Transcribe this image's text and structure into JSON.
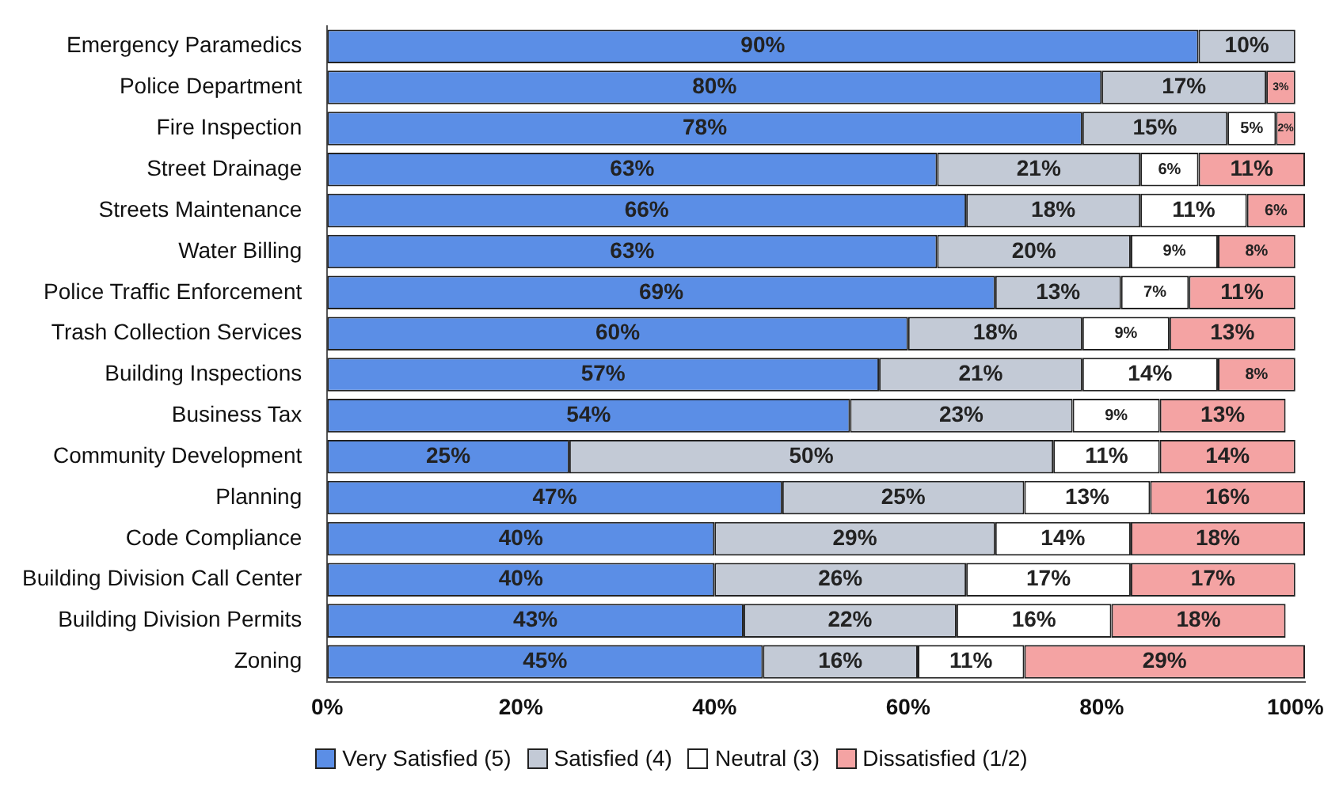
{
  "chart_data": {
    "type": "bar",
    "orientation": "horizontal",
    "stacked": true,
    "legend": "bottom",
    "grid": false,
    "categories": [
      "Emergency Paramedics",
      "Police Department",
      "Fire Inspection",
      "Street Drainage",
      "Streets Maintenance",
      "Water Billing",
      "Police Traffic Enforcement",
      "Trash Collection Services",
      "Building Inspections",
      "Business Tax",
      "Community Development",
      "Planning",
      "Code Compliance",
      "Building Division Call Center",
      "Building Division Permits",
      "Zoning"
    ],
    "xlim": [
      0,
      101
    ],
    "xticks": [
      {
        "value": 0,
        "label": "0%"
      },
      {
        "value": 20,
        "label": "20%"
      },
      {
        "value": 40,
        "label": "40%"
      },
      {
        "value": 60,
        "label": "60%"
      },
      {
        "value": 80,
        "label": "80%"
      },
      {
        "value": 100,
        "label": "100%"
      }
    ],
    "series": [
      {
        "name": "Very Satisfied (5)",
        "color": "#5b8ee6",
        "values": [
          90,
          80,
          78,
          63,
          66,
          63,
          69,
          60,
          57,
          54,
          25,
          47,
          40,
          40,
          43,
          45
        ],
        "value_labels": [
          "90%",
          "80%",
          "78%",
          "63%",
          "66%",
          "63%",
          "69%",
          "60%",
          "57%",
          "54%",
          "25%",
          "47%",
          "40%",
          "40%",
          "43%",
          "45%"
        ]
      },
      {
        "name": "Satisfied (4)",
        "color": "#c3cad6",
        "values": [
          10,
          17,
          15,
          21,
          18,
          20,
          13,
          18,
          21,
          23,
          50,
          25,
          29,
          26,
          22,
          16
        ],
        "value_labels": [
          "10%",
          "17%",
          "15%",
          "21%",
          "18%",
          "20%",
          "13%",
          "18%",
          "21%",
          "23%",
          "50%",
          "25%",
          "29%",
          "26%",
          "22%",
          "16%"
        ]
      },
      {
        "name": "Neutral (3)",
        "color": "#ffffff",
        "values": [
          null,
          null,
          5,
          6,
          11,
          9,
          7,
          9,
          14,
          9,
          11,
          13,
          14,
          17,
          16,
          11
        ],
        "value_labels": [
          null,
          null,
          "5%",
          "6%",
          "11%",
          "9%",
          "7%",
          "9%",
          "14%",
          "9%",
          "11%",
          "13%",
          "14%",
          "17%",
          "16%",
          "11%"
        ]
      },
      {
        "name": "Dissatisfied (1/2)",
        "color": "#f4a3a3",
        "values": [
          null,
          3,
          2,
          11,
          6,
          8,
          11,
          13,
          8,
          13,
          14,
          16,
          18,
          17,
          18,
          29
        ],
        "value_labels": [
          null,
          "3%",
          "2%",
          "11%",
          "6%",
          "8%",
          "11%",
          "13%",
          "8%",
          "13%",
          "14%",
          "16%",
          "18%",
          "17%",
          "18%",
          "29%"
        ]
      }
    ]
  }
}
